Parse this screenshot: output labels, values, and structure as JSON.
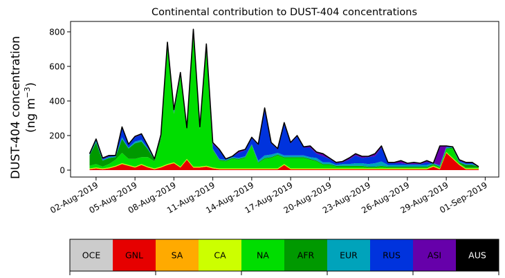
{
  "chart_data": {
    "type": "area",
    "title": "Continental contribution to DUST-404 concentrations",
    "ylabel_line1": "DUST-404 concentration",
    "ylabel_line2": "(ng m",
    "ylabel_sup": "−3",
    "ylabel_close": ")",
    "xlabel": "",
    "x_start": "2019-08-01",
    "x_end": "2019-09-01",
    "ylim": [
      -40,
      860
    ],
    "yticks": [
      0,
      200,
      400,
      600,
      800
    ],
    "xticks": [
      {
        "date": "2019-08-02",
        "label": "02-Aug-2019"
      },
      {
        "date": "2019-08-05",
        "label": "05-Aug-2019"
      },
      {
        "date": "2019-08-08",
        "label": "08-Aug-2019"
      },
      {
        "date": "2019-08-11",
        "label": "11-Aug-2019"
      },
      {
        "date": "2019-08-14",
        "label": "14-Aug-2019"
      },
      {
        "date": "2019-08-17",
        "label": "17-Aug-2019"
      },
      {
        "date": "2019-08-20",
        "label": "20-Aug-2019"
      },
      {
        "date": "2019-08-23",
        "label": "23-Aug-2019"
      },
      {
        "date": "2019-08-26",
        "label": "26-Aug-2019"
      },
      {
        "date": "2019-08-29",
        "label": "29-Aug-2019"
      },
      {
        "date": "2019-09-01",
        "label": "01-Sep-2019"
      }
    ],
    "total": {
      "x": [
        "2019-08-01 12:00",
        "2019-08-02",
        "2019-08-02 12:00",
        "2019-08-03",
        "2019-08-03 12:00",
        "2019-08-04",
        "2019-08-04 12:00",
        "2019-08-05",
        "2019-08-05 12:00",
        "2019-08-06",
        "2019-08-06 12:00",
        "2019-08-07",
        "2019-08-07 12:00",
        "2019-08-08",
        "2019-08-08 12:00",
        "2019-08-09",
        "2019-08-09 12:00",
        "2019-08-10",
        "2019-08-10 12:00",
        "2019-08-11",
        "2019-08-11 12:00",
        "2019-08-12",
        "2019-08-12 12:00",
        "2019-08-13",
        "2019-08-13 12:00",
        "2019-08-14",
        "2019-08-14 12:00",
        "2019-08-15",
        "2019-08-15 12:00",
        "2019-08-16",
        "2019-08-16 12:00",
        "2019-08-17",
        "2019-08-17 12:00",
        "2019-08-18",
        "2019-08-18 12:00",
        "2019-08-19",
        "2019-08-19 12:00",
        "2019-08-20",
        "2019-08-20 12:00",
        "2019-08-21",
        "2019-08-21 12:00",
        "2019-08-22",
        "2019-08-22 12:00",
        "2019-08-23",
        "2019-08-23 12:00",
        "2019-08-24",
        "2019-08-24 12:00",
        "2019-08-25",
        "2019-08-25 12:00",
        "2019-08-26",
        "2019-08-26 12:00",
        "2019-08-27",
        "2019-08-27 12:00",
        "2019-08-28",
        "2019-08-28 12:00",
        "2019-08-29",
        "2019-08-29 12:00",
        "2019-08-30",
        "2019-08-30 12:00",
        "2019-08-31",
        "2019-08-31 12:00"
      ],
      "values": [
        95,
        180,
        70,
        85,
        85,
        250,
        150,
        195,
        210,
        140,
        65,
        205,
        740,
        350,
        565,
        245,
        815,
        250,
        730,
        160,
        120,
        65,
        80,
        110,
        120,
        190,
        150,
        360,
        160,
        125,
        275,
        160,
        200,
        135,
        140,
        105,
        95,
        70,
        45,
        50,
        70,
        95,
        80,
        80,
        95,
        140,
        45,
        45,
        55,
        40,
        45,
        40,
        55,
        40,
        140,
        140,
        135,
        60,
        45,
        45,
        20
      ]
    },
    "series": [
      {
        "name": "GNL",
        "values": [
          5,
          10,
          5,
          10,
          20,
          35,
          25,
          15,
          30,
          15,
          5,
          15,
          30,
          40,
          15,
          60,
          15,
          15,
          20,
          10,
          5,
          5,
          5,
          5,
          5,
          5,
          5,
          5,
          5,
          5,
          30,
          5,
          5,
          5,
          5,
          5,
          5,
          5,
          5,
          5,
          5,
          5,
          5,
          5,
          5,
          5,
          5,
          5,
          5,
          5,
          5,
          5,
          5,
          20,
          5,
          100,
          65,
          30,
          5,
          5,
          5
        ]
      },
      {
        "name": "CA",
        "values": [
          5,
          5,
          5,
          5,
          5,
          5,
          5,
          5,
          5,
          5,
          5,
          5,
          5,
          5,
          5,
          5,
          5,
          5,
          5,
          5,
          5,
          5,
          5,
          5,
          5,
          5,
          5,
          5,
          5,
          5,
          5,
          5,
          5,
          5,
          5,
          5,
          5,
          5,
          5,
          5,
          5,
          5,
          5,
          5,
          5,
          5,
          5,
          5,
          5,
          5,
          5,
          5,
          5,
          5,
          5,
          5,
          5,
          5,
          5,
          5,
          5
        ]
      },
      {
        "name": "NA",
        "values": [
          15,
          20,
          10,
          20,
          35,
          60,
          35,
          45,
          40,
          55,
          40,
          155,
          690,
          280,
          520,
          175,
          770,
          215,
          660,
          100,
          45,
          40,
          55,
          50,
          60,
          130,
          30,
          55,
          60,
          75,
          35,
          60,
          60,
          60,
          50,
          40,
          20,
          20,
          10,
          10,
          10,
          10,
          10,
          5,
          5,
          10,
          5,
          5,
          5,
          5,
          5,
          5,
          5,
          5,
          5,
          15,
          55,
          5,
          5,
          5,
          5
        ]
      },
      {
        "name": "AFR",
        "values": [
          60,
          125,
          35,
          35,
          15,
          80,
          60,
          90,
          90,
          45,
          10,
          15,
          5,
          5,
          5,
          5,
          5,
          5,
          10,
          5,
          5,
          5,
          5,
          5,
          5,
          5,
          5,
          5,
          5,
          5,
          5,
          5,
          5,
          5,
          5,
          5,
          5,
          5,
          5,
          5,
          5,
          5,
          5,
          5,
          5,
          5,
          5,
          5,
          5,
          5,
          5,
          5,
          5,
          5,
          5,
          5,
          5,
          5,
          15,
          15,
          5
        ]
      },
      {
        "name": "EUR",
        "values": [
          5,
          10,
          5,
          5,
          5,
          10,
          5,
          10,
          10,
          5,
          5,
          5,
          5,
          5,
          5,
          0,
          5,
          5,
          5,
          5,
          5,
          5,
          5,
          5,
          5,
          5,
          10,
          15,
          15,
          10,
          10,
          10,
          10,
          10,
          10,
          15,
          10,
          10,
          5,
          10,
          10,
          15,
          15,
          15,
          20,
          25,
          10,
          10,
          10,
          10,
          10,
          10,
          10,
          5,
          5,
          5,
          5,
          5,
          5,
          5,
          5
        ]
      },
      {
        "name": "RUS",
        "values": [
          5,
          5,
          5,
          5,
          5,
          55,
          15,
          25,
          30,
          10,
          0,
          5,
          0,
          10,
          10,
          0,
          10,
          0,
          25,
          25,
          50,
          5,
          5,
          30,
          35,
          35,
          90,
          270,
          65,
          20,
          180,
          70,
          110,
          45,
          55,
          25,
          35,
          20,
          10,
          10,
          25,
          45,
          30,
          40,
          40,
          80,
          10,
          10,
          10,
          5,
          5,
          5,
          15,
          5,
          5,
          5,
          5,
          5,
          5,
          5,
          0
        ]
      },
      {
        "name": "ASI",
        "values": [
          0,
          5,
          5,
          5,
          0,
          5,
          5,
          5,
          5,
          5,
          0,
          5,
          5,
          5,
          5,
          0,
          5,
          5,
          5,
          10,
          5,
          0,
          0,
          5,
          5,
          5,
          5,
          5,
          5,
          0,
          5,
          5,
          5,
          5,
          10,
          10,
          15,
          5,
          5,
          5,
          10,
          15,
          10,
          5,
          15,
          10,
          5,
          5,
          10,
          5,
          10,
          5,
          10,
          0,
          5,
          5,
          5,
          5,
          5,
          5,
          0
        ]
      }
    ],
    "legend": [
      {
        "name": "OCE",
        "color": "#cccccc",
        "text_color": "#000000"
      },
      {
        "name": "GNL",
        "color": "#e60000",
        "text_color": "#000000"
      },
      {
        "name": "SA",
        "color": "#ffaa00",
        "text_color": "#000000"
      },
      {
        "name": "CA",
        "color": "#ccff00",
        "text_color": "#000000"
      },
      {
        "name": "NA",
        "color": "#00dd00",
        "text_color": "#000000"
      },
      {
        "name": "AFR",
        "color": "#009900",
        "text_color": "#000000"
      },
      {
        "name": "EUR",
        "color": "#00a3bb",
        "text_color": "#000000"
      },
      {
        "name": "RUS",
        "color": "#0033dd",
        "text_color": "#000000"
      },
      {
        "name": "ASI",
        "color": "#6600aa",
        "text_color": "#000000"
      },
      {
        "name": "AUS",
        "color": "#000000",
        "text_color": "#ffffff"
      }
    ],
    "grid": false,
    "legend_placement": "bottom"
  }
}
